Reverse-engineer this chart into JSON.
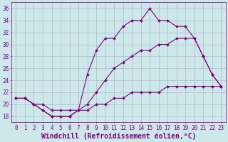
{
  "xlabel": "Windchill (Refroidissement éolien,°C)",
  "background_color": "#cce8e8",
  "line_color": "#800080",
  "xlim": [
    -0.5,
    23.5
  ],
  "ylim": [
    17,
    37
  ],
  "yticks": [
    18,
    20,
    22,
    24,
    26,
    28,
    30,
    32,
    34,
    36
  ],
  "xticks": [
    0,
    1,
    2,
    3,
    4,
    5,
    6,
    7,
    8,
    9,
    10,
    11,
    12,
    13,
    14,
    15,
    16,
    17,
    18,
    19,
    20,
    21,
    22,
    23
  ],
  "series": [
    {
      "x": [
        0,
        1,
        2,
        3,
        4,
        5,
        6,
        7,
        8,
        9,
        10,
        11,
        12,
        13,
        14,
        15,
        16,
        17,
        18,
        19,
        20,
        21,
        22,
        23
      ],
      "y": [
        21,
        21,
        20,
        19,
        18,
        18,
        18,
        19,
        19,
        20,
        20,
        21,
        21,
        22,
        22,
        22,
        22,
        23,
        23,
        23,
        23,
        23,
        23,
        23
      ]
    },
    {
      "x": [
        0,
        1,
        2,
        3,
        4,
        5,
        6,
        7,
        8,
        9,
        10,
        11,
        12,
        13,
        14,
        15,
        16,
        17,
        18,
        19,
        20,
        21,
        22,
        23
      ],
      "y": [
        21,
        21,
        20,
        19,
        18,
        18,
        18,
        19,
        20,
        22,
        24,
        26,
        27,
        28,
        29,
        29,
        30,
        30,
        31,
        31,
        31,
        28,
        25,
        23
      ]
    },
    {
      "x": [
        0,
        1,
        2,
        3,
        4,
        5,
        6,
        7,
        8,
        9,
        10,
        11,
        12,
        13,
        14,
        15,
        16,
        17,
        18,
        19,
        20,
        21,
        22,
        23
      ],
      "y": [
        21,
        21,
        20,
        20,
        19,
        19,
        19,
        19,
        25,
        29,
        31,
        31,
        33,
        34,
        34,
        36,
        34,
        34,
        33,
        33,
        31,
        28,
        25,
        23
      ]
    }
  ],
  "font_color": "#800080",
  "grid_color": "#aaaacc",
  "tick_fontsize": 5.5,
  "xlabel_fontsize": 7,
  "marker": "D",
  "marker_size": 2.0,
  "line_width": 0.8
}
